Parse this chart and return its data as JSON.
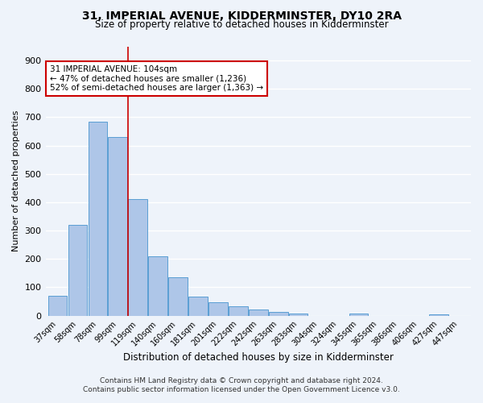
{
  "title": "31, IMPERIAL AVENUE, KIDDERMINSTER, DY10 2RA",
  "subtitle": "Size of property relative to detached houses in Kidderminster",
  "xlabel": "Distribution of detached houses by size in Kidderminster",
  "ylabel": "Number of detached properties",
  "footnote1": "Contains HM Land Registry data © Crown copyright and database right 2024.",
  "footnote2": "Contains public sector information licensed under the Open Government Licence v3.0.",
  "categories": [
    "37sqm",
    "58sqm",
    "78sqm",
    "99sqm",
    "119sqm",
    "140sqm",
    "160sqm",
    "181sqm",
    "201sqm",
    "222sqm",
    "242sqm",
    "263sqm",
    "283sqm",
    "304sqm",
    "324sqm",
    "345sqm",
    "365sqm",
    "386sqm",
    "406sqm",
    "427sqm",
    "447sqm"
  ],
  "values": [
    70,
    320,
    685,
    630,
    410,
    210,
    135,
    68,
    48,
    33,
    22,
    12,
    6,
    0,
    0,
    7,
    0,
    0,
    0,
    5,
    0
  ],
  "bar_color": "#aec6e8",
  "bar_edge_color": "#5a9fd4",
  "bg_color": "#eef3fa",
  "grid_color": "#ffffff",
  "property_line_x": 3.5,
  "annotation_title": "31 IMPERIAL AVENUE: 104sqm",
  "annotation_line1": "← 47% of detached houses are smaller (1,236)",
  "annotation_line2": "52% of semi-detached houses are larger (1,363) →",
  "annotation_box_color": "#ffffff",
  "annotation_border_color": "#cc0000",
  "property_line_color": "#cc0000",
  "ylim": [
    0,
    950
  ],
  "yticks": [
    0,
    100,
    200,
    300,
    400,
    500,
    600,
    700,
    800,
    900
  ]
}
